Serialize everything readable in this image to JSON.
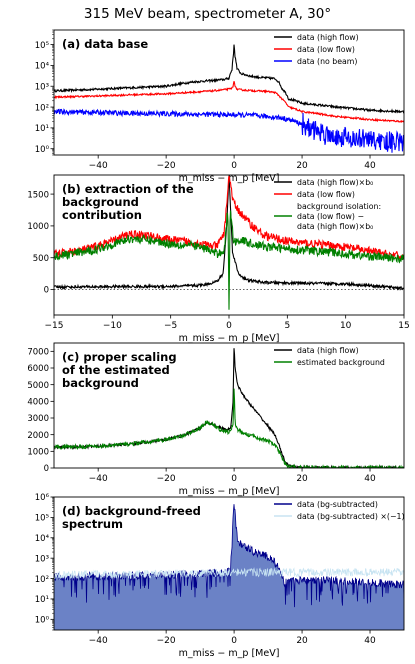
{
  "figure_title": "315 MeV beam, spectrometer A,  30°",
  "xlabel": "m_miss − m_p [MeV]",
  "colors": {
    "black": "#000000",
    "red": "#ff0000",
    "blue": "#0000ff",
    "green": "#008000",
    "navy": "#00008b",
    "fill": "#5b74c0",
    "lightblue": "#c8e4f2"
  },
  "chart_data": [
    {
      "type": "line",
      "panel_label": "(a) data base",
      "y_scale": "log",
      "xlim": [
        -53,
        50
      ],
      "ylim": [
        0.5,
        500000
      ],
      "xticks": [
        -40,
        -20,
        0,
        20,
        40
      ],
      "yticks": [
        1,
        10,
        100,
        1000,
        10000,
        100000
      ],
      "yticklabels": [
        "10⁰",
        "10¹",
        "10²",
        "10³",
        "10⁴",
        "10⁵"
      ],
      "legend_position": "top-right",
      "series": [
        {
          "name": "data (high flow)",
          "color": "#000000",
          "x": [
            -53,
            -40,
            -30,
            -20,
            -12,
            -6,
            -3,
            -1.5,
            -0.6,
            -0.2,
            0,
            0.2,
            0.8,
            2,
            5,
            8,
            10,
            12,
            13,
            14,
            16,
            20,
            30,
            40,
            50
          ],
          "y": [
            600,
            720,
            850,
            1000,
            1600,
            1900,
            2100,
            2400,
            6000,
            30000,
            100000,
            30000,
            7000,
            4000,
            3000,
            2600,
            2500,
            2300,
            1700,
            800,
            250,
            150,
            100,
            70,
            60
          ]
        },
        {
          "name": "data (low flow)",
          "color": "#ff0000",
          "x": [
            -53,
            -40,
            -30,
            -20,
            -12,
            -6,
            -3,
            -1,
            -0.3,
            0,
            0.3,
            1,
            3,
            6,
            9,
            12,
            13,
            14,
            16,
            20,
            30,
            40,
            50
          ],
          "y": [
            300,
            340,
            390,
            430,
            520,
            600,
            680,
            750,
            900,
            2000,
            900,
            700,
            650,
            600,
            580,
            500,
            380,
            250,
            100,
            60,
            35,
            25,
            20
          ]
        },
        {
          "name": "data (no beam)",
          "color": "#0000ff",
          "x": [
            -53,
            -40,
            -30,
            -20,
            -10,
            0,
            5,
            10,
            14,
            18,
            22,
            26,
            30,
            35,
            40,
            45,
            50
          ],
          "y": [
            60,
            55,
            50,
            48,
            45,
            42,
            40,
            35,
            30,
            20,
            10,
            6,
            4,
            3,
            2.5,
            2.2,
            2
          ]
        }
      ]
    },
    {
      "type": "line",
      "panel_label_lines": [
        "(b) extraction of the",
        "background",
        "contribution"
      ],
      "xlim": [
        -15,
        15
      ],
      "ylim": [
        -400,
        1800
      ],
      "xticks": [
        -15,
        -10,
        -5,
        0,
        5,
        10,
        15
      ],
      "yticks": [
        0,
        500,
        1000,
        1500
      ],
      "hline": 0,
      "legend_position": "top-right",
      "series": [
        {
          "name": "data (high flow)×b₀",
          "color": "#000000",
          "x": [
            -15,
            -10,
            -5,
            -3,
            -2,
            -1,
            -0.5,
            -0.2,
            0,
            0.3,
            0.8,
            1.5,
            3,
            6,
            10,
            13,
            15
          ],
          "y": [
            40,
            45,
            50,
            60,
            80,
            130,
            250,
            1000,
            1800,
            600,
            250,
            150,
            110,
            100,
            90,
            50,
            20
          ]
        },
        {
          "name": "data (low flow)",
          "color": "#ff0000",
          "x": [
            -15,
            -12,
            -10,
            -8.5,
            -7,
            -5,
            -3,
            -2,
            -1,
            -0.4,
            0,
            0.4,
            1,
            2,
            3,
            5,
            7,
            9,
            11,
            13,
            15
          ],
          "y": [
            550,
            640,
            760,
            880,
            850,
            780,
            740,
            700,
            680,
            900,
            1800,
            1350,
            1200,
            1000,
            850,
            760,
            720,
            690,
            640,
            570,
            510
          ]
        },
        {
          "name": "background isolation:",
          "name_lines": [
            "background isolation:",
            "data (low flow) −",
            "data (high flow)×b₀"
          ],
          "color": "#008000",
          "x": [
            -15,
            -12,
            -10,
            -8.5,
            -7,
            -5,
            -3,
            -2,
            -1,
            -0.4,
            -0.1,
            0,
            0.1,
            0.4,
            1,
            2,
            3,
            5,
            7,
            9,
            11,
            13,
            15
          ],
          "y": [
            520,
            600,
            710,
            800,
            780,
            720,
            690,
            640,
            560,
            620,
            1300,
            -300,
            1300,
            750,
            780,
            720,
            680,
            640,
            610,
            580,
            540,
            510,
            480
          ]
        }
      ]
    },
    {
      "type": "line",
      "panel_label_lines": [
        "(c) proper scaling",
        "of the estimated",
        "background"
      ],
      "xlim": [
        -53,
        50
      ],
      "ylim": [
        0,
        7500
      ],
      "xticks": [
        -40,
        -20,
        0,
        20,
        40
      ],
      "yticks": [
        0,
        1000,
        2000,
        3000,
        4000,
        5000,
        6000,
        7000
      ],
      "legend_position": "top-right",
      "series": [
        {
          "name": "data (high flow)",
          "color": "#000000",
          "x": [
            -53,
            -40,
            -30,
            -20,
            -15,
            -10,
            -8,
            -6,
            -4,
            -2,
            -1,
            -0.3,
            0,
            0.3,
            1,
            2,
            4,
            6,
            8,
            10,
            12,
            13,
            14,
            15,
            16,
            18,
            20,
            30,
            40,
            50
          ],
          "y": [
            1250,
            1300,
            1450,
            1700,
            1950,
            2400,
            2750,
            2600,
            2400,
            2300,
            2400,
            4000,
            7500,
            6000,
            5000,
            4600,
            4000,
            3500,
            3000,
            2500,
            2000,
            1500,
            900,
            400,
            120,
            50,
            30,
            15,
            10,
            5
          ]
        },
        {
          "name": "estimated background",
          "color": "#008000",
          "x": [
            -53,
            -40,
            -30,
            -20,
            -15,
            -10,
            -8,
            -6,
            -4,
            -2,
            -1,
            -0.3,
            0,
            0.3,
            1,
            2,
            4,
            6,
            8,
            10,
            12,
            13,
            14,
            15,
            16,
            18,
            20,
            30,
            40,
            50
          ],
          "y": [
            1250,
            1300,
            1450,
            1700,
            1950,
            2400,
            2750,
            2550,
            2300,
            2150,
            2200,
            2600,
            5000,
            2700,
            2300,
            2150,
            2000,
            1900,
            1750,
            1600,
            1400,
            1050,
            600,
            250,
            80,
            40,
            25,
            15,
            10,
            5
          ]
        }
      ]
    },
    {
      "type": "line",
      "panel_label_lines": [
        "(d) background-freed",
        "spectrum"
      ],
      "y_scale": "log",
      "xlim": [
        -53,
        50
      ],
      "ylim": [
        0.3,
        1000000
      ],
      "xticks": [
        -40,
        -20,
        0,
        20,
        40
      ],
      "yticks": [
        1,
        10,
        100,
        1000,
        10000,
        100000,
        1000000
      ],
      "yticklabels": [
        "10⁰",
        "10¹",
        "10²",
        "10³",
        "10⁴",
        "10⁵",
        "10⁶"
      ],
      "legend_position": "top-right",
      "series": [
        {
          "name": "data (bg-subtracted)",
          "color": "#00008b",
          "x": [
            -53,
            -40,
            -30,
            -20,
            -10,
            -5,
            -2,
            -1,
            -0.5,
            0,
            0.5,
            1,
            2,
            4,
            6,
            8,
            10,
            12,
            13,
            14,
            15,
            18,
            25,
            35,
            50
          ],
          "y": [
            120,
            130,
            140,
            150,
            170,
            190,
            200,
            300,
            3000,
            400000,
            30000,
            8000,
            5000,
            3000,
            2000,
            1600,
            1200,
            600,
            300,
            100,
            60,
            80,
            90,
            70,
            50
          ]
        },
        {
          "name": "data (bg-subtracted) ×(−1)",
          "color": "#c8e4f2",
          "x": [
            -53,
            -40,
            -20,
            -10,
            -3,
            -1
          ],
          "y": [
            150,
            160,
            170,
            180,
            190,
            200
          ]
        }
      ]
    }
  ]
}
